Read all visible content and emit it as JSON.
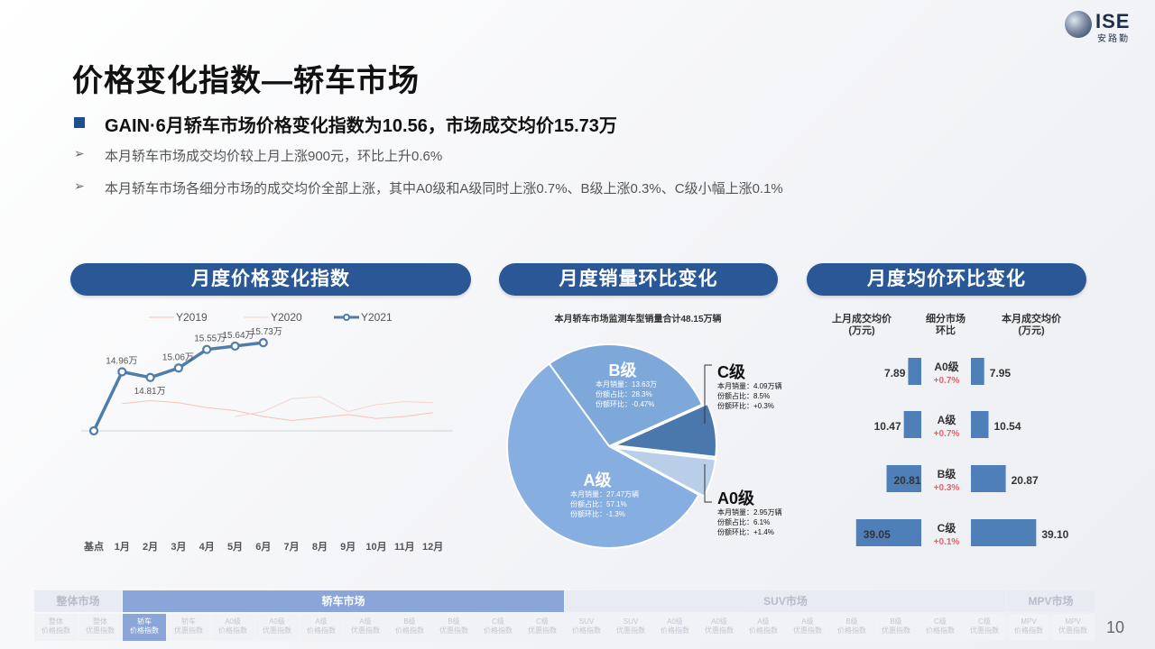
{
  "logo": {
    "text": "ISE",
    "sub": "安路勤"
  },
  "page_title": "价格变化指数—轿车市场",
  "headline": "GAIN·6月轿车市场价格变化指数为10.56，市场成交均价15.73万",
  "bullet_glyph": "➢",
  "bullets": [
    "本月轿车市场成交均价较上月上涨900元，环比上升0.6%",
    "本月轿车市场各细分市场的成交均价全部上涨，其中A0级和A级同时上涨0.7%、B级上涨0.3%、C级小幅上涨0.1%"
  ],
  "sections": {
    "index": "月度价格变化指数",
    "sales": "月度销量环比变化",
    "price": "月度均价环比变化"
  },
  "chart_data": [
    {
      "type": "line",
      "x": [
        "基点",
        "1月",
        "2月",
        "3月",
        "4月",
        "5月",
        "6月",
        "7月",
        "8月",
        "9月",
        "10月",
        "11月",
        "12月"
      ],
      "series": [
        {
          "name": "Y2019",
          "values": [
            null,
            0.1,
            0.25,
            0.15,
            -0.1,
            -0.25,
            -0.55,
            -0.75,
            -0.6,
            -0.45,
            -0.65,
            -0.55,
            -0.35
          ]
        },
        {
          "name": "Y2020",
          "values": [
            null,
            null,
            null,
            null,
            null,
            -0.55,
            -0.3,
            0.35,
            0.45,
            -0.3,
            0.05,
            0.2,
            0.15
          ]
        },
        {
          "name": "Y2021",
          "values": [
            13.4,
            14.96,
            14.81,
            15.06,
            15.55,
            15.64,
            15.73,
            null,
            null,
            null,
            null,
            null,
            null
          ]
        }
      ],
      "labels": [
        "",
        "14.96万",
        "14.81万",
        "15.06万",
        "15.55万",
        "15.64万",
        "15.73万"
      ],
      "colors": {
        "Y2019": "#f3c3b8",
        "Y2020": "#f1d6d0",
        "Y2021": "#4f7cab"
      }
    },
    {
      "type": "pie",
      "title": "本月轿车市场监测车型销量合计48.15万辆",
      "slices": [
        {
          "name": "B级",
          "value": 28.3,
          "lines": [
            "本月销量：13.63万",
            "份额占比：28.3%",
            "份额环比：-0.47%"
          ],
          "color": "#7fa8da"
        },
        {
          "name": "C级",
          "value": 8.5,
          "lines": [
            "本月销量：4.09万辆",
            "份额占比：8.5%",
            "份额环比：+0.3%"
          ],
          "color": "#4a78ad"
        },
        {
          "name": "A0级",
          "value": 6.1,
          "lines": [
            "本月销量：2.95万辆",
            "份额占比：6.1%",
            "份额环比：+1.4%"
          ],
          "color": "#b9cfe9"
        },
        {
          "name": "A级",
          "value": 57.1,
          "lines": [
            "本月销量：27.47万辆",
            "份额占比：57.1%",
            "份额环比：-1.3%"
          ],
          "color": "#86aee0"
        }
      ]
    },
    {
      "type": "bar",
      "headers": [
        "上月成交均价\n(万元)",
        "细分市场\n环比",
        "本月成交均价\n(万元)"
      ],
      "categories": [
        "A0级",
        "A级",
        "B级",
        "C级"
      ],
      "changes": [
        "+0.7%",
        "+0.7%",
        "+0.3%",
        "+0.1%"
      ],
      "series": [
        {
          "name": "上月成交均价",
          "values": [
            7.89,
            10.47,
            20.81,
            39.05
          ]
        },
        {
          "name": "本月成交均价",
          "values": [
            7.95,
            10.54,
            20.87,
            39.1
          ]
        }
      ],
      "labels_prev": [
        "7.89",
        "10.47",
        "20.81",
        "39.05"
      ],
      "labels_curr": [
        "7.95",
        "10.54",
        "20.87",
        "39.10"
      ],
      "color": "#4f7fb8"
    }
  ],
  "nav": {
    "top": [
      "整体市场",
      "轿车市场",
      "SUV市场",
      "MPV市场"
    ],
    "sub": [
      [
        "整体",
        "价格指数"
      ],
      [
        "整体",
        "优惠指数"
      ],
      [
        "轿车",
        "价格指数"
      ],
      [
        "轿车",
        "优惠指数"
      ],
      [
        "A0级",
        "价格指数"
      ],
      [
        "A0级",
        "优惠指数"
      ],
      [
        "A级",
        "价格指数"
      ],
      [
        "A级",
        "优惠指数"
      ],
      [
        "B级",
        "价格指数"
      ],
      [
        "B级",
        "优惠指数"
      ],
      [
        "C级",
        "价格指数"
      ],
      [
        "C级",
        "优惠指数"
      ],
      [
        "SUV",
        "价格指数"
      ],
      [
        "SUV",
        "优惠指数"
      ],
      [
        "A0级",
        "价格指数"
      ],
      [
        "A0级",
        "优惠指数"
      ],
      [
        "A级",
        "价格指数"
      ],
      [
        "A级",
        "优惠指数"
      ],
      [
        "B级",
        "价格指数"
      ],
      [
        "B级",
        "优惠指数"
      ],
      [
        "C级",
        "价格指数"
      ],
      [
        "C级",
        "优惠指数"
      ],
      [
        "MPV",
        "价格指数"
      ],
      [
        "MPV",
        "优惠指数"
      ]
    ],
    "active_top": 1,
    "active_sub": 2
  },
  "page_number": "10"
}
